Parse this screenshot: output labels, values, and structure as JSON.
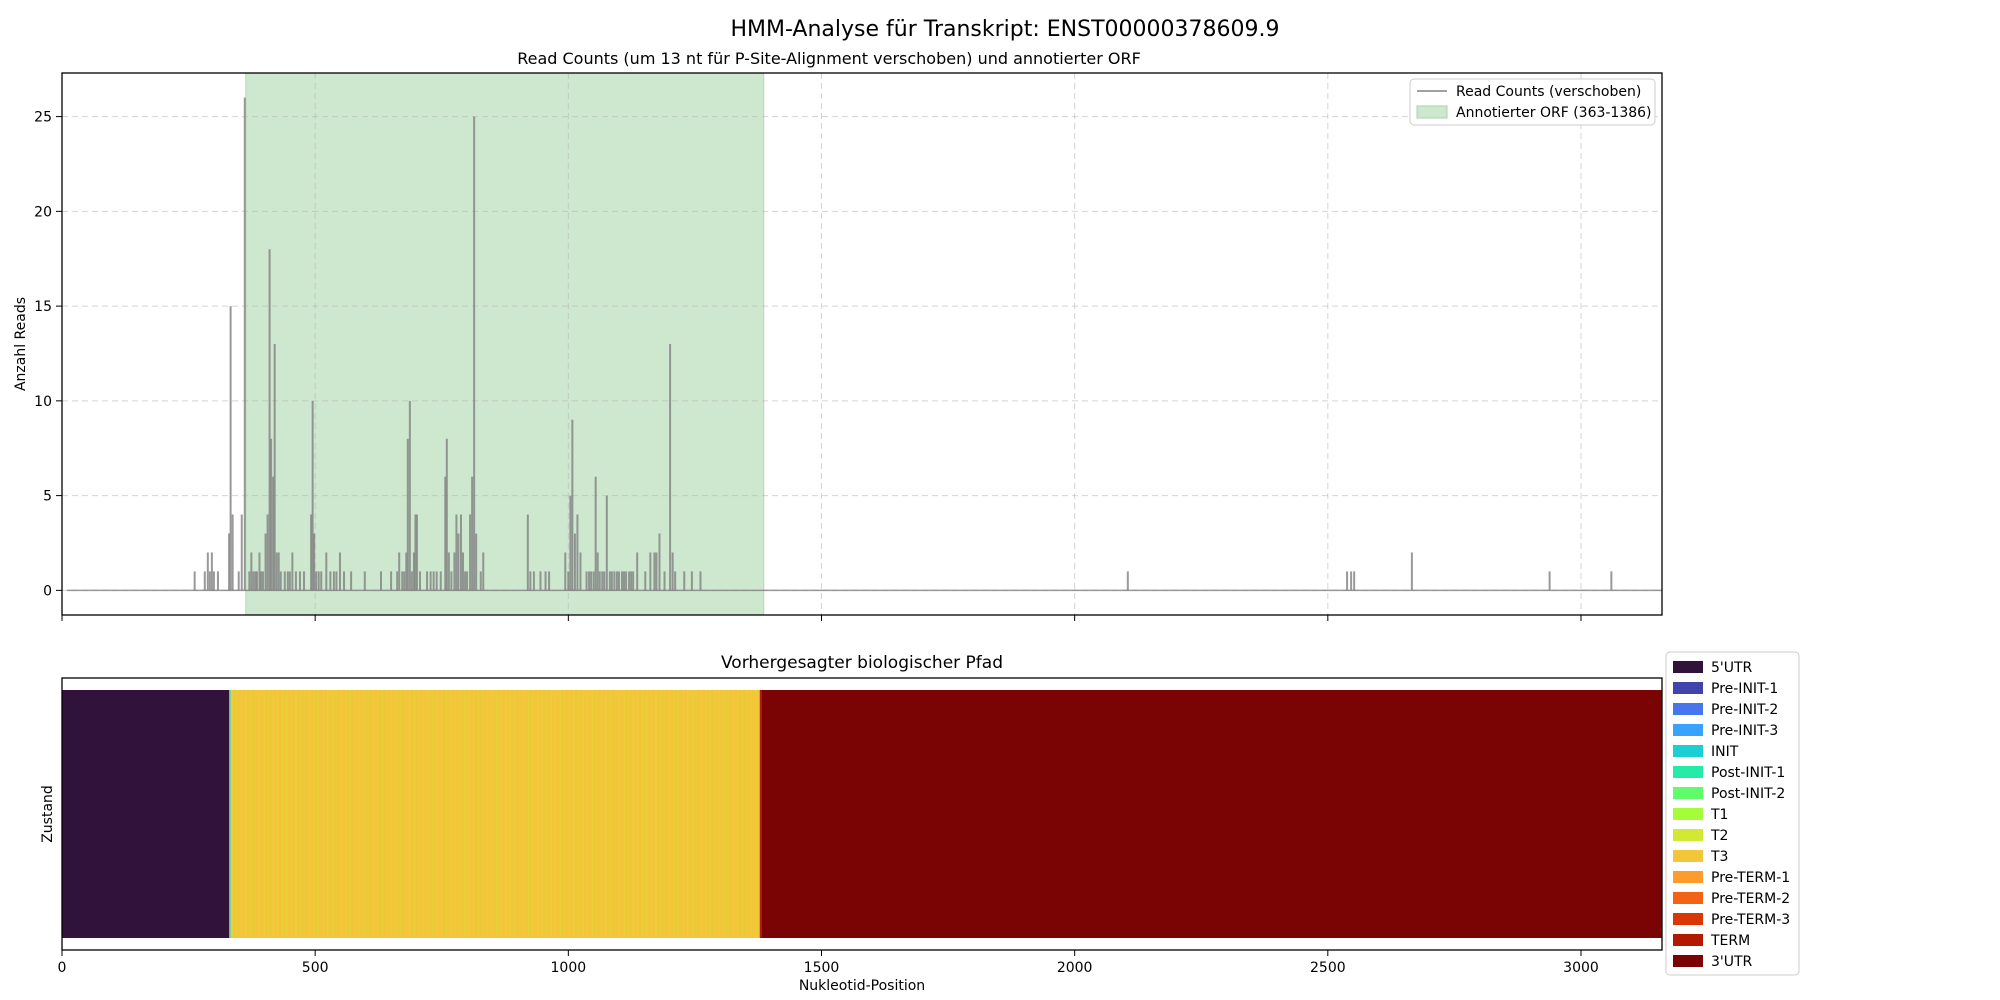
{
  "figure": {
    "suptitle": "HMM-Analyse für Transkript: ENST00000378609.9"
  },
  "chart_data": [
    {
      "type": "bar",
      "title": "Read Counts (um 13 nt für P-Site-Alignment verschoben) und annotierter ORF",
      "xlabel": "",
      "ylabel": "Anzahl Reads",
      "xlim": [
        0,
        3160
      ],
      "ylim": [
        -1.3,
        27.3
      ],
      "yticks": [
        0,
        5,
        10,
        15,
        20,
        25
      ],
      "xticks": [
        0,
        500,
        1000,
        1500,
        2000,
        2500,
        3000
      ],
      "grid": true,
      "legend_position": "top-right",
      "series": [
        {
          "name": "Read Counts (verschoben)",
          "color": "#808080",
          "points": [
            [
              262,
              1
            ],
            [
              282,
              1
            ],
            [
              288,
              2
            ],
            [
              292,
              1
            ],
            [
              296,
              2
            ],
            [
              300,
              1
            ],
            [
              308,
              1
            ],
            [
              330,
              3
            ],
            [
              333,
              15
            ],
            [
              337,
              4
            ],
            [
              349,
              1
            ],
            [
              355,
              4
            ],
            [
              361,
              26
            ],
            [
              370,
              1
            ],
            [
              374,
              2
            ],
            [
              378,
              1
            ],
            [
              382,
              1
            ],
            [
              385,
              1
            ],
            [
              390,
              2
            ],
            [
              393,
              1
            ],
            [
              397,
              1
            ],
            [
              402,
              3
            ],
            [
              406,
              4
            ],
            [
              410,
              18
            ],
            [
              413,
              8
            ],
            [
              417,
              6
            ],
            [
              420,
              13
            ],
            [
              424,
              2
            ],
            [
              428,
              2
            ],
            [
              432,
              1
            ],
            [
              440,
              1
            ],
            [
              446,
              1
            ],
            [
              450,
              1
            ],
            [
              455,
              2
            ],
            [
              462,
              1
            ],
            [
              470,
              1
            ],
            [
              478,
              1
            ],
            [
              492,
              4
            ],
            [
              495,
              10
            ],
            [
              498,
              3
            ],
            [
              502,
              1
            ],
            [
              507,
              1
            ],
            [
              512,
              1
            ],
            [
              522,
              2
            ],
            [
              530,
              1
            ],
            [
              537,
              1
            ],
            [
              542,
              1
            ],
            [
              549,
              2
            ],
            [
              557,
              1
            ],
            [
              571,
              1
            ],
            [
              598,
              1
            ],
            [
              630,
              1
            ],
            [
              650,
              1
            ],
            [
              662,
              1
            ],
            [
              666,
              2
            ],
            [
              672,
              1
            ],
            [
              676,
              1
            ],
            [
              680,
              2
            ],
            [
              683,
              8
            ],
            [
              687,
              10
            ],
            [
              691,
              1
            ],
            [
              695,
              2
            ],
            [
              698,
              4
            ],
            [
              701,
              4
            ],
            [
              707,
              1
            ],
            [
              721,
              1
            ],
            [
              728,
              1
            ],
            [
              734,
              1
            ],
            [
              740,
              1
            ],
            [
              748,
              1
            ],
            [
              757,
              6
            ],
            [
              760,
              8
            ],
            [
              764,
              2
            ],
            [
              769,
              1
            ],
            [
              775,
              2
            ],
            [
              779,
              4
            ],
            [
              783,
              3
            ],
            [
              788,
              4
            ],
            [
              792,
              2
            ],
            [
              796,
              1
            ],
            [
              800,
              1
            ],
            [
              806,
              4
            ],
            [
              810,
              6
            ],
            [
              814,
              25
            ],
            [
              818,
              3
            ],
            [
              827,
              1
            ],
            [
              832,
              2
            ],
            [
              920,
              4
            ],
            [
              925,
              1
            ],
            [
              932,
              1
            ],
            [
              945,
              1
            ],
            [
              955,
              1
            ],
            [
              962,
              1
            ],
            [
              994,
              2
            ],
            [
              1000,
              1
            ],
            [
              1004,
              5
            ],
            [
              1008,
              9
            ],
            [
              1013,
              3
            ],
            [
              1018,
              4
            ],
            [
              1024,
              2
            ],
            [
              1036,
              1
            ],
            [
              1041,
              1
            ],
            [
              1045,
              1
            ],
            [
              1050,
              1
            ],
            [
              1054,
              6
            ],
            [
              1058,
              2
            ],
            [
              1062,
              1
            ],
            [
              1067,
              1
            ],
            [
              1071,
              1
            ],
            [
              1076,
              5
            ],
            [
              1082,
              1
            ],
            [
              1086,
              1
            ],
            [
              1091,
              1
            ],
            [
              1096,
              1
            ],
            [
              1100,
              1
            ],
            [
              1106,
              1
            ],
            [
              1110,
              1
            ],
            [
              1114,
              1
            ],
            [
              1120,
              1
            ],
            [
              1124,
              1
            ],
            [
              1128,
              1
            ],
            [
              1136,
              2
            ],
            [
              1152,
              1
            ],
            [
              1162,
              2
            ],
            [
              1170,
              2
            ],
            [
              1174,
              2
            ],
            [
              1180,
              3
            ],
            [
              1190,
              1
            ],
            [
              1201,
              13
            ],
            [
              1206,
              2
            ],
            [
              1211,
              1
            ],
            [
              1229,
              1
            ],
            [
              1244,
              1
            ],
            [
              1261,
              1
            ],
            [
              2105,
              1
            ],
            [
              2538,
              1
            ],
            [
              2546,
              1
            ],
            [
              2552,
              1
            ],
            [
              2666,
              2
            ],
            [
              2938,
              1
            ],
            [
              3060,
              1
            ]
          ]
        },
        {
          "name": "Annotierter ORF (363-1386)",
          "kind": "shaded-region",
          "color": "#a5d6a7",
          "x_range": [
            363,
            1386
          ]
        }
      ]
    },
    {
      "type": "heatmap",
      "title": "Vorhergesagter biologischer Pfad",
      "xlabel": "Nukleotid-Position",
      "ylabel": "Zustand",
      "xlim": [
        0,
        3160
      ],
      "xticks": [
        0,
        500,
        1000,
        1500,
        2000,
        2500,
        3000
      ],
      "legend_position": "right",
      "states": [
        {
          "name": "5'UTR",
          "color": "#30123b"
        },
        {
          "name": "Pre-INIT-1",
          "color": "#4145ab"
        },
        {
          "name": "Pre-INIT-2",
          "color": "#4675ed"
        },
        {
          "name": "Pre-INIT-3",
          "color": "#39a2fc"
        },
        {
          "name": "INIT",
          "color": "#1bcfd4"
        },
        {
          "name": "Post-INIT-1",
          "color": "#24eca6"
        },
        {
          "name": "Post-INIT-2",
          "color": "#61fc6c"
        },
        {
          "name": "T1",
          "color": "#a4fc3b"
        },
        {
          "name": "T2",
          "color": "#d1e834"
        },
        {
          "name": "T3",
          "color": "#f3c63a"
        },
        {
          "name": "Pre-TERM-1",
          "color": "#fe9b2d"
        },
        {
          "name": "Pre-TERM-2",
          "color": "#f36315"
        },
        {
          "name": "Pre-TERM-3",
          "color": "#d93806"
        },
        {
          "name": "TERM",
          "color": "#b11901"
        },
        {
          "name": "3'UTR",
          "color": "#7a0403"
        }
      ],
      "path": [
        {
          "state": "5'UTR",
          "start": 0,
          "end": 330
        },
        {
          "state": "INIT",
          "start": 330,
          "end": 333
        },
        {
          "state": "T3",
          "start": 333,
          "end": 1378
        },
        {
          "state": "TERM",
          "start": 1378,
          "end": 1381
        },
        {
          "state": "3'UTR",
          "start": 1381,
          "end": 3160
        }
      ]
    }
  ]
}
